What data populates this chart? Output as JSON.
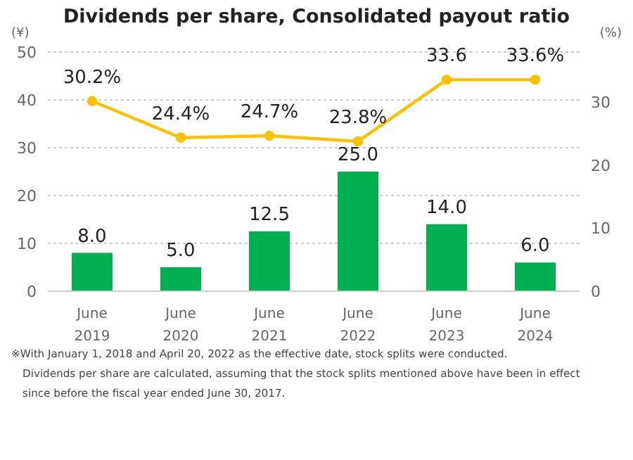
{
  "chart_data": {
    "type": "bar",
    "title": "Dividends per share, Consolidated payout ratio",
    "ylabel": "(¥)",
    "y2label": "(%)",
    "categories": [
      "June 2019",
      "June 2020",
      "June 2021",
      "June 2022",
      "June 2023",
      "June 2024"
    ],
    "series": [
      {
        "color": "#00b050",
        "values": [
          8.0,
          5.0,
          12.5,
          25.0,
          14.0,
          6.0
        ],
        "value_labels": [
          "8.0",
          "5.0",
          "12.5",
          "25.0",
          "14.0",
          "6.0"
        ]
      },
      {
        "type": "line",
        "axis": "y2",
        "color": "#ffc000",
        "marker": "circle",
        "values": [
          30.2,
          24.4,
          24.7,
          23.8,
          33.6,
          33.6
        ],
        "value_labels": [
          "30.2%",
          "24.4%",
          "24.7%",
          "23.8%",
          "33.6",
          "33.6%"
        ]
      }
    ],
    "ylim": [
      0,
      50
    ],
    "yticks": [
      0,
      10,
      20,
      30,
      40,
      50
    ],
    "y2lim": [
      0,
      38
    ],
    "y2ticks": [
      0,
      10,
      20,
      30
    ],
    "grid": "y",
    "annotations": [
      "※With January 1, 2018 and April 20, 2022 as the effective date, stock splits were conducted.",
      "Dividends per share are calculated, assuming that the stock splits mentioned above have been in effect",
      "since before the fiscal year ended June 30, 2017."
    ]
  }
}
